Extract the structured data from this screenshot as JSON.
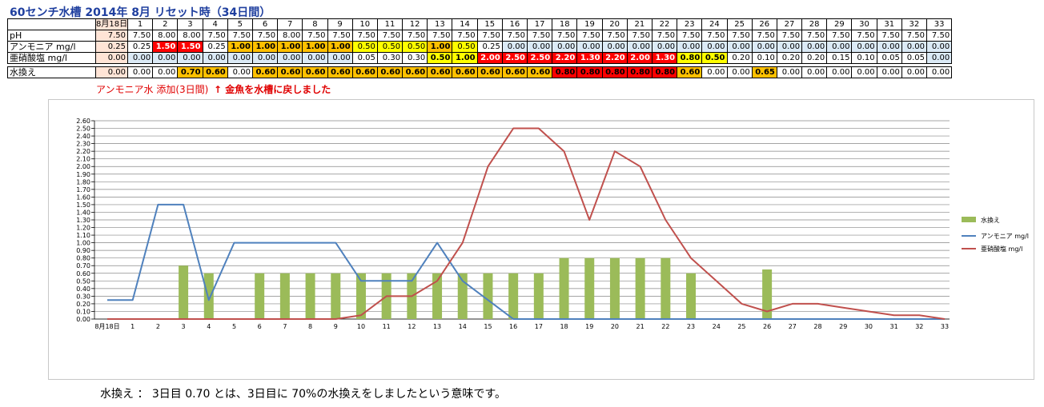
{
  "title": "60センチ水槽 2014年 8月 リセット時（34日間）",
  "table": {
    "header_first": "8月18日",
    "headers": [
      "1",
      "2",
      "3",
      "4",
      "5",
      "6",
      "7",
      "8",
      "9",
      "10",
      "11",
      "12",
      "13",
      "14",
      "15",
      "16",
      "17",
      "18",
      "19",
      "20",
      "21",
      "22",
      "23",
      "24",
      "25",
      "26",
      "27",
      "28",
      "29",
      "30",
      "31",
      "32",
      "33"
    ],
    "rows": [
      {
        "label": "pH",
        "values": [
          "7.50",
          "7.50",
          "8.00",
          "8.00",
          "7.50",
          "7.50",
          "7.50",
          "8.00",
          "7.50",
          "7.50",
          "7.50",
          "7.50",
          "7.50",
          "7.50",
          "7.50",
          "7.50",
          "7.50",
          "7.50",
          "7.50",
          "7.50",
          "7.50",
          "7.50",
          "7.50",
          "7.50",
          "7.50",
          "7.50",
          "7.50",
          "7.50",
          "7.50",
          "7.50",
          "7.50",
          "7.50",
          "7.50",
          "7.50"
        ]
      },
      {
        "label": "アンモニア mg/l",
        "values": [
          "0.25",
          "0.25",
          "1.50",
          "1.50",
          "0.25",
          "1.00",
          "1.00",
          "1.00",
          "1.00",
          "1.00",
          "0.50",
          "0.50",
          "0.50",
          "1.00",
          "0.50",
          "0.25",
          "0.00",
          "0.00",
          "0.00",
          "0.00",
          "0.00",
          "0.00",
          "0.00",
          "0.00",
          "0.00",
          "0.00",
          "0.00",
          "0.00",
          "0.00",
          "0.00",
          "0.00",
          "0.00",
          "0.00",
          "0.00"
        ]
      },
      {
        "label": "亜硝酸塩 mg/l",
        "values": [
          "0.00",
          "0.00",
          "0.00",
          "0.00",
          "0.00",
          "0.00",
          "0.00",
          "0.00",
          "0.00",
          "0.00",
          "0.05",
          "0.30",
          "0.30",
          "0.50",
          "1.00",
          "2.00",
          "2.50",
          "2.50",
          "2.20",
          "1.30",
          "2.20",
          "2.00",
          "1.30",
          "0.80",
          "0.50",
          "0.20",
          "0.10",
          "0.20",
          "0.20",
          "0.15",
          "0.10",
          "0.05",
          "0.05",
          "0.00"
        ]
      },
      {
        "label": "水換え",
        "values": [
          "0.00",
          "0.00",
          "0.00",
          "0.70",
          "0.60",
          "0.00",
          "0.60",
          "0.60",
          "0.60",
          "0.60",
          "0.60",
          "0.60",
          "0.60",
          "0.60",
          "0.60",
          "0.60",
          "0.60",
          "0.60",
          "0.80",
          "0.80",
          "0.80",
          "0.80",
          "0.80",
          "0.60",
          "0.00",
          "0.00",
          "0.65",
          "0.00",
          "0.00",
          "0.00",
          "0.00",
          "0.00",
          "0.00",
          "0.00"
        ]
      }
    ]
  },
  "colors": {
    "label_bg": "#ffe4d6",
    "ph_bg": "#ffffff",
    "zero_bg": "#dbeaf6",
    "bar": "#9bbb59",
    "ammonia_line": "#4f81bd",
    "nitrite_line": "#c0504d",
    "grid": "#868686"
  },
  "notes": {
    "ammonia_add": "アンモニア水 添加(3日間)",
    "goldfish": "↑ 金魚を水槽に戻しました"
  },
  "chart_data": {
    "type": "bar+line",
    "categories": [
      "8月18日",
      "1",
      "2",
      "3",
      "4",
      "5",
      "6",
      "7",
      "8",
      "9",
      "10",
      "11",
      "12",
      "13",
      "14",
      "15",
      "16",
      "17",
      "18",
      "19",
      "20",
      "21",
      "22",
      "23",
      "24",
      "25",
      "26",
      "27",
      "28",
      "29",
      "30",
      "31",
      "32",
      "33"
    ],
    "ylim": [
      0,
      2.6
    ],
    "ytick_step": 0.1,
    "grid": true,
    "legend_position": "right",
    "series": [
      {
        "name": "水換え",
        "type": "bar",
        "values": [
          0,
          0,
          0,
          0.7,
          0.6,
          0,
          0.6,
          0.6,
          0.6,
          0.6,
          0.6,
          0.6,
          0.6,
          0.6,
          0.6,
          0.6,
          0.6,
          0.6,
          0.8,
          0.8,
          0.8,
          0.8,
          0.8,
          0.6,
          0,
          0,
          0.65,
          0,
          0,
          0,
          0,
          0,
          0,
          0
        ]
      },
      {
        "name": "アンモニア mg/l",
        "type": "line",
        "values": [
          0.25,
          0.25,
          1.5,
          1.5,
          0.25,
          1.0,
          1.0,
          1.0,
          1.0,
          1.0,
          0.5,
          0.5,
          0.5,
          1.0,
          0.5,
          0.25,
          0,
          0,
          0,
          0,
          0,
          0,
          0,
          0,
          0,
          0,
          0,
          0,
          0,
          0,
          0,
          0,
          0,
          0
        ]
      },
      {
        "name": "亜硝酸塩 mg/l",
        "type": "line",
        "values": [
          0,
          0,
          0,
          0,
          0,
          0,
          0,
          0,
          0,
          0,
          0.05,
          0.3,
          0.3,
          0.5,
          1.0,
          2.0,
          2.5,
          2.5,
          2.2,
          1.3,
          2.2,
          2.0,
          1.3,
          0.8,
          0.5,
          0.2,
          0.1,
          0.2,
          0.2,
          0.15,
          0.1,
          0.05,
          0.05,
          0
        ]
      }
    ]
  },
  "footer": "水換え ： 3日目 0.70 とは、3日目に 70%の水換えをしましたという意味です。"
}
